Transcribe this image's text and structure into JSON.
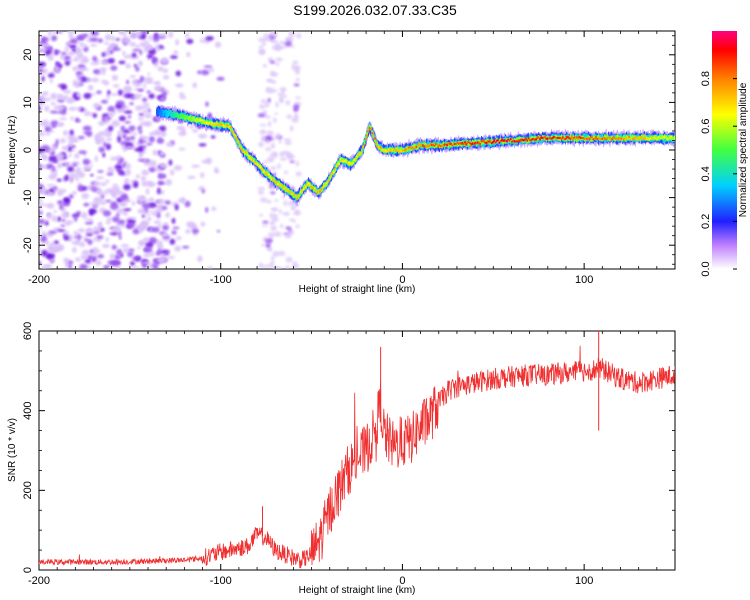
{
  "figure_title": "S199.2026.032.07.33.C35",
  "chart_data": [
    {
      "type": "heatmap",
      "xlabel": "Height of straight line (km)",
      "ylabel": "Frequency (Hz)",
      "xlim": [
        -200,
        150
      ],
      "ylim": [
        -25,
        25
      ],
      "x_ticks": [
        -200,
        -100,
        0,
        100
      ],
      "y_ticks": [
        -20,
        -10,
        0,
        10,
        20
      ],
      "colorbar": {
        "label": "Normalized spectral amplitude",
        "range": [
          0,
          1
        ],
        "ticks": [
          0.0,
          0.2,
          0.4,
          0.6,
          0.8
        ],
        "tick_labels": [
          "0.0",
          "0.2",
          "0.4",
          "0.6",
          "0.8"
        ],
        "colormap": "rainbow"
      },
      "ridge": {
        "description_points_x_km": [
          -135,
          -125,
          -115,
          -105,
          -95,
          -88,
          -80,
          -72,
          -65,
          -58,
          -52,
          -46,
          -40,
          -34,
          -28,
          -22,
          -18,
          -14,
          -10,
          -5,
          0,
          10,
          20,
          40,
          60,
          80,
          100,
          120,
          150
        ],
        "frequency_hz": [
          8,
          7.5,
          6.5,
          5.5,
          5,
          0,
          -3,
          -6,
          -8,
          -10,
          -7,
          -9,
          -6,
          -2,
          -3,
          0,
          5,
          1,
          0,
          0,
          0,
          1,
          1,
          1.5,
          2,
          2.5,
          2.5,
          2.5,
          2.5
        ],
        "amplitude": [
          0.25,
          0.45,
          0.6,
          0.7,
          0.75,
          0.7,
          0.7,
          0.7,
          0.7,
          0.75,
          0.7,
          0.75,
          0.7,
          0.7,
          0.7,
          0.75,
          0.85,
          0.8,
          0.7,
          0.7,
          0.75,
          0.85,
          0.85,
          0.9,
          0.95,
          0.9,
          0.85,
          0.8,
          0.6
        ]
      },
      "noise_region_x_km": [
        -200,
        -130
      ],
      "noise_band_x_km": [
        -78,
        -57
      ]
    },
    {
      "type": "line",
      "xlabel": "Height of straight line (km)",
      "ylabel": "SNR (10 * v/v)",
      "xlim": [
        -200,
        150
      ],
      "ylim": [
        0,
        600
      ],
      "x_ticks": [
        -200,
        -100,
        0,
        100
      ],
      "y_ticks": [
        0,
        200,
        400,
        600
      ],
      "line_color": "#f03030",
      "series": [
        {
          "name": "SNR",
          "x": [
            -200,
            -180,
            -160,
            -140,
            -120,
            -110,
            -100,
            -95,
            -90,
            -85,
            -80,
            -75,
            -70,
            -65,
            -60,
            -55,
            -50,
            -45,
            -40,
            -35,
            -30,
            -25,
            -20,
            -15,
            -12,
            -10,
            -5,
            0,
            5,
            10,
            15,
            20,
            25,
            30,
            40,
            50,
            60,
            70,
            80,
            90,
            100,
            110,
            120,
            130,
            140,
            150
          ],
          "values": [
            20,
            20,
            20,
            22,
            25,
            30,
            45,
            50,
            55,
            60,
            90,
            80,
            50,
            40,
            30,
            25,
            40,
            80,
            150,
            200,
            250,
            280,
            300,
            350,
            420,
            340,
            310,
            320,
            330,
            360,
            380,
            420,
            450,
            460,
            470,
            480,
            485,
            490,
            490,
            495,
            500,
            505,
            480,
            470,
            480,
            490
          ],
          "peaks": [
            {
              "x": -77,
              "y": 160
            },
            {
              "x": -12,
              "y": 560
            },
            {
              "x": 108,
              "y": 600
            },
            {
              "x": 108,
              "y": 350
            }
          ]
        }
      ]
    }
  ]
}
